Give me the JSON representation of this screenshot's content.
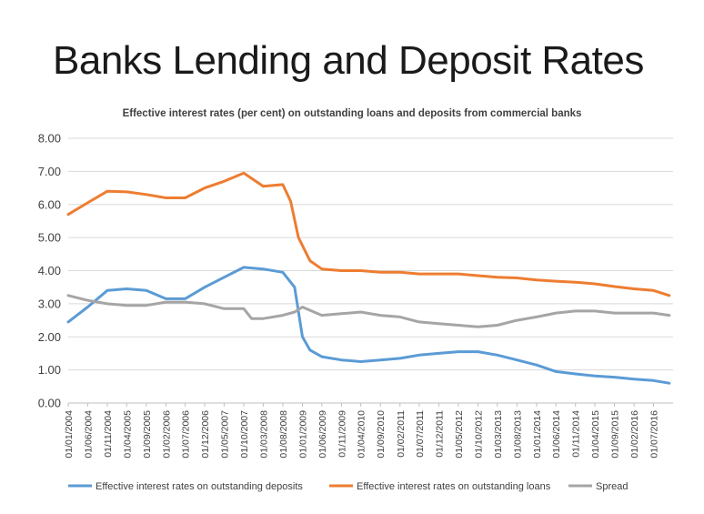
{
  "slide_title": "Banks Lending and Deposit Rates",
  "chart_data": {
    "type": "line",
    "title": "Effective interest rates (per cent) on outstanding loans and deposits from commercial banks",
    "xlabel": "",
    "ylabel": "",
    "ylim": [
      0,
      8
    ],
    "y_ticks": [
      "0.00",
      "1.00",
      "2.00",
      "3.00",
      "4.00",
      "5.00",
      "6.00",
      "7.00",
      "8.00"
    ],
    "x_ticks": [
      "01/01/2004",
      "01/06/2004",
      "01/11/2004",
      "01/04/2005",
      "01/09/2005",
      "01/02/2006",
      "01/07/2006",
      "01/12/2006",
      "01/05/2007",
      "01/10/2007",
      "01/03/2008",
      "01/08/2008",
      "01/01/2009",
      "01/06/2009",
      "01/11/2009",
      "01/04/2010",
      "01/09/2010",
      "01/02/2011",
      "01/07/2011",
      "01/12/2011",
      "01/05/2012",
      "01/10/2012",
      "01/03/2013",
      "01/08/2013",
      "01/01/2014",
      "01/06/2014",
      "01/11/2014",
      "01/04/2015",
      "01/09/2015",
      "01/02/2016",
      "01/07/2016"
    ],
    "grid": true,
    "legend_position": "bottom",
    "series": [
      {
        "name": "Effective interest rates on outstanding deposits",
        "color": "#5B9BD5",
        "points": [
          [
            "01/01/2004",
            2.45
          ],
          [
            "01/06/2004",
            2.9
          ],
          [
            "01/11/2004",
            3.4
          ],
          [
            "01/04/2005",
            3.45
          ],
          [
            "01/09/2005",
            3.4
          ],
          [
            "01/02/2006",
            3.15
          ],
          [
            "01/07/2006",
            3.15
          ],
          [
            "01/12/2006",
            3.5
          ],
          [
            "01/05/2007",
            3.8
          ],
          [
            "01/10/2007",
            4.1
          ],
          [
            "01/03/2008",
            4.05
          ],
          [
            "01/08/2008",
            3.95
          ],
          [
            "01/11/2008",
            3.5
          ],
          [
            "01/01/2009",
            2.0
          ],
          [
            "01/03/2009",
            1.6
          ],
          [
            "01/06/2009",
            1.4
          ],
          [
            "01/11/2009",
            1.3
          ],
          [
            "01/04/2010",
            1.25
          ],
          [
            "01/09/2010",
            1.3
          ],
          [
            "01/02/2011",
            1.35
          ],
          [
            "01/07/2011",
            1.45
          ],
          [
            "01/12/2011",
            1.5
          ],
          [
            "01/05/2012",
            1.55
          ],
          [
            "01/10/2012",
            1.55
          ],
          [
            "01/03/2013",
            1.45
          ],
          [
            "01/08/2013",
            1.3
          ],
          [
            "01/01/2014",
            1.15
          ],
          [
            "01/06/2014",
            0.95
          ],
          [
            "01/11/2014",
            0.88
          ],
          [
            "01/04/2015",
            0.82
          ],
          [
            "01/09/2015",
            0.78
          ],
          [
            "01/02/2016",
            0.72
          ],
          [
            "01/07/2016",
            0.68
          ],
          [
            "01/11/2016",
            0.6
          ]
        ]
      },
      {
        "name": "Effective interest rates on outstanding loans",
        "color": "#ED7D31",
        "points": [
          [
            "01/01/2004",
            5.7
          ],
          [
            "01/06/2004",
            6.05
          ],
          [
            "01/11/2004",
            6.4
          ],
          [
            "01/04/2005",
            6.38
          ],
          [
            "01/09/2005",
            6.3
          ],
          [
            "01/02/2006",
            6.2
          ],
          [
            "01/07/2006",
            6.2
          ],
          [
            "01/12/2006",
            6.5
          ],
          [
            "01/05/2007",
            6.7
          ],
          [
            "01/10/2007",
            6.95
          ],
          [
            "01/03/2008",
            6.55
          ],
          [
            "01/08/2008",
            6.6
          ],
          [
            "01/10/2008",
            6.1
          ],
          [
            "01/12/2008",
            5.0
          ],
          [
            "01/03/2009",
            4.3
          ],
          [
            "01/06/2009",
            4.05
          ],
          [
            "01/11/2009",
            4.0
          ],
          [
            "01/04/2010",
            4.0
          ],
          [
            "01/09/2010",
            3.95
          ],
          [
            "01/02/2011",
            3.95
          ],
          [
            "01/07/2011",
            3.9
          ],
          [
            "01/12/2011",
            3.9
          ],
          [
            "01/05/2012",
            3.9
          ],
          [
            "01/10/2012",
            3.85
          ],
          [
            "01/03/2013",
            3.8
          ],
          [
            "01/08/2013",
            3.78
          ],
          [
            "01/01/2014",
            3.72
          ],
          [
            "01/06/2014",
            3.68
          ],
          [
            "01/11/2014",
            3.65
          ],
          [
            "01/04/2015",
            3.6
          ],
          [
            "01/09/2015",
            3.52
          ],
          [
            "01/02/2016",
            3.45
          ],
          [
            "01/07/2016",
            3.4
          ],
          [
            "01/11/2016",
            3.25
          ]
        ]
      },
      {
        "name": "Spread",
        "color": "#A5A5A5",
        "points": [
          [
            "01/01/2004",
            3.25
          ],
          [
            "01/06/2004",
            3.1
          ],
          [
            "01/11/2004",
            3.0
          ],
          [
            "01/04/2005",
            2.95
          ],
          [
            "01/09/2005",
            2.95
          ],
          [
            "01/02/2006",
            3.05
          ],
          [
            "01/07/2006",
            3.05
          ],
          [
            "01/12/2006",
            3.0
          ],
          [
            "01/05/2007",
            2.85
          ],
          [
            "01/10/2007",
            2.85
          ],
          [
            "01/12/2007",
            2.55
          ],
          [
            "01/03/2008",
            2.55
          ],
          [
            "01/08/2008",
            2.65
          ],
          [
            "01/11/2008",
            2.75
          ],
          [
            "01/01/2009",
            2.9
          ],
          [
            "01/06/2009",
            2.65
          ],
          [
            "01/11/2009",
            2.7
          ],
          [
            "01/04/2010",
            2.75
          ],
          [
            "01/09/2010",
            2.65
          ],
          [
            "01/02/2011",
            2.6
          ],
          [
            "01/07/2011",
            2.45
          ],
          [
            "01/12/2011",
            2.4
          ],
          [
            "01/05/2012",
            2.35
          ],
          [
            "01/10/2012",
            2.3
          ],
          [
            "01/03/2013",
            2.35
          ],
          [
            "01/08/2013",
            2.5
          ],
          [
            "01/01/2014",
            2.6
          ],
          [
            "01/06/2014",
            2.72
          ],
          [
            "01/11/2014",
            2.78
          ],
          [
            "01/04/2015",
            2.78
          ],
          [
            "01/09/2015",
            2.72
          ],
          [
            "01/02/2016",
            2.72
          ],
          [
            "01/07/2016",
            2.72
          ],
          [
            "01/11/2016",
            2.65
          ]
        ]
      }
    ]
  }
}
